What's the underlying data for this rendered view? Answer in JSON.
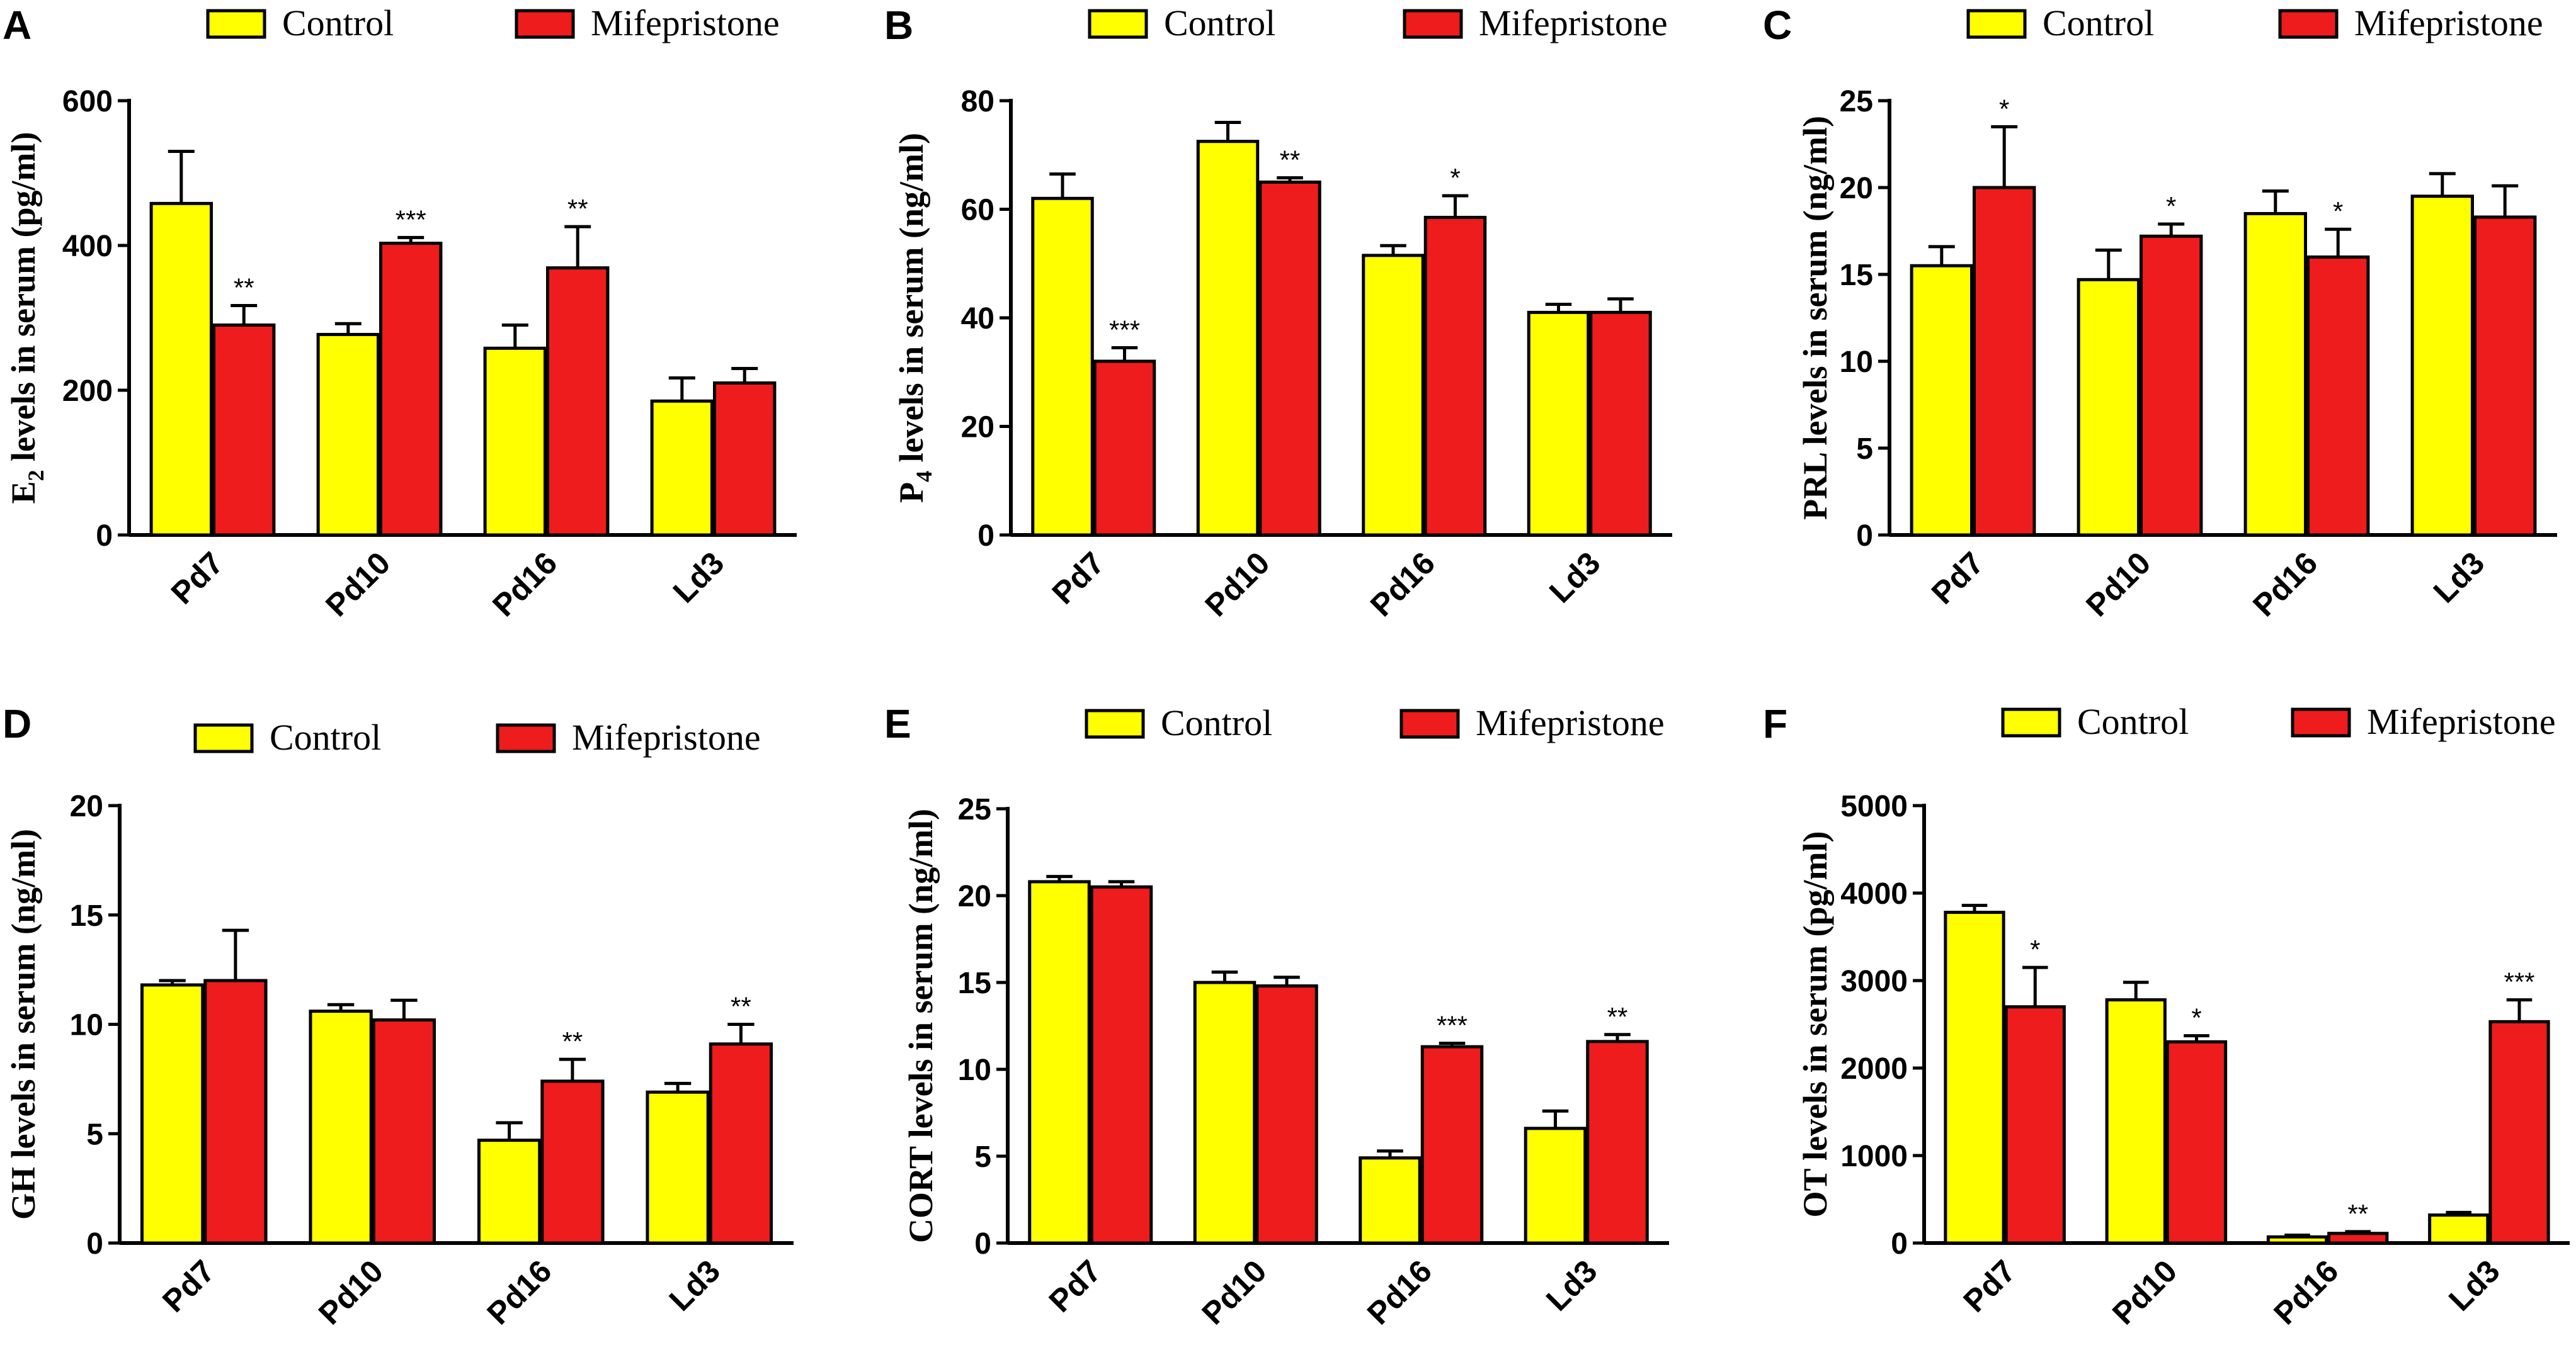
{
  "colors": {
    "control": "#ffff00",
    "treatment": "#ee1c1c"
  },
  "legend": {
    "control": "Control",
    "treatment": "Mifepristone"
  },
  "chart_data": [
    {
      "panel": "A",
      "type": "bar",
      "ylabel": {
        "main": "E",
        "sub": "2",
        "rest": " levels in serum (pg/ml)"
      },
      "ylim": [
        0,
        600
      ],
      "yticks": [
        0,
        200,
        400,
        600
      ],
      "categories": [
        "Pd7",
        "Pd10",
        "Pd16",
        "Ld3"
      ],
      "series": [
        {
          "name": "Control",
          "values": [
            458,
            277,
            258,
            185
          ],
          "errors": [
            72,
            15,
            32,
            32
          ]
        },
        {
          "name": "Mifepristone",
          "values": [
            290,
            403,
            369,
            210
          ],
          "errors": [
            27,
            8,
            57,
            20
          ],
          "significance": [
            "**",
            "***",
            "**",
            ""
          ]
        }
      ]
    },
    {
      "panel": "B",
      "type": "bar",
      "ylabel": {
        "main": "P",
        "sub": "4",
        "rest": " levels in serum (ng/ml)"
      },
      "ylim": [
        0,
        80
      ],
      "yticks": [
        0,
        20,
        40,
        60,
        80
      ],
      "categories": [
        "Pd7",
        "Pd10",
        "Pd16",
        "Ld3"
      ],
      "series": [
        {
          "name": "Control",
          "values": [
            62,
            72.5,
            51.5,
            41
          ],
          "errors": [
            4.5,
            3.5,
            1.8,
            1.5
          ]
        },
        {
          "name": "Mifepristone",
          "values": [
            32,
            65,
            58.5,
            41
          ],
          "errors": [
            2.5,
            0.8,
            4,
            2.5
          ],
          "significance": [
            "***",
            "**",
            "*",
            ""
          ]
        }
      ]
    },
    {
      "panel": "C",
      "type": "bar",
      "ylabel": {
        "main": "PRL levels in serum (ng/ml)",
        "sub": "",
        "rest": ""
      },
      "ylim": [
        0,
        25
      ],
      "yticks": [
        0,
        5,
        10,
        15,
        20,
        25
      ],
      "categories": [
        "Pd7",
        "Pd10",
        "Pd16",
        "Ld3"
      ],
      "series": [
        {
          "name": "Control",
          "values": [
            15.5,
            14.7,
            18.5,
            19.5
          ],
          "errors": [
            1.1,
            1.7,
            1.3,
            1.3
          ]
        },
        {
          "name": "Mifepristone",
          "values": [
            20,
            17.2,
            16,
            18.3
          ],
          "errors": [
            3.5,
            0.7,
            1.6,
            1.8
          ],
          "significance": [
            "*",
            "*",
            "*",
            ""
          ]
        }
      ]
    },
    {
      "panel": "D",
      "type": "bar",
      "ylabel": {
        "main": "GH levels in serum (ng/ml)",
        "sub": "",
        "rest": ""
      },
      "ylim": [
        0,
        20
      ],
      "yticks": [
        0,
        5,
        10,
        15,
        20
      ],
      "categories": [
        "Pd7",
        "Pd10",
        "Pd16",
        "Ld3"
      ],
      "series": [
        {
          "name": "Control",
          "values": [
            11.8,
            10.6,
            4.7,
            6.9
          ],
          "errors": [
            0.2,
            0.3,
            0.8,
            0.4
          ]
        },
        {
          "name": "Mifepristone",
          "values": [
            12,
            10.2,
            7.4,
            9.1
          ],
          "errors": [
            2.3,
            0.9,
            1.0,
            0.9
          ],
          "significance": [
            "",
            "",
            "**",
            "**"
          ]
        }
      ]
    },
    {
      "panel": "E",
      "type": "bar",
      "ylabel": {
        "main": "CORT levels in serum (ng/ml)",
        "sub": "",
        "rest": ""
      },
      "ylim": [
        0,
        25
      ],
      "yticks": [
        0,
        5,
        10,
        15,
        20,
        25
      ],
      "categories": [
        "Pd7",
        "Pd10",
        "Pd16",
        "Ld3"
      ],
      "series": [
        {
          "name": "Control",
          "values": [
            20.8,
            15,
            4.9,
            6.6
          ],
          "errors": [
            0.3,
            0.6,
            0.4,
            1.0
          ]
        },
        {
          "name": "Mifepristone",
          "values": [
            20.5,
            14.8,
            11.3,
            11.6
          ],
          "errors": [
            0.3,
            0.5,
            0.2,
            0.4
          ],
          "significance": [
            "",
            "",
            "***",
            "**"
          ]
        }
      ]
    },
    {
      "panel": "F",
      "type": "bar",
      "ylabel": {
        "main": "OT levels in serum (pg/ml)",
        "sub": "",
        "rest": ""
      },
      "ylim": [
        0,
        5000
      ],
      "yticks": [
        0,
        1000,
        2000,
        3000,
        4000,
        5000
      ],
      "categories": [
        "Pd7",
        "Pd10",
        "Pd16",
        "Ld3"
      ],
      "series": [
        {
          "name": "Control",
          "values": [
            3780,
            2780,
            70,
            320
          ],
          "errors": [
            80,
            200,
            20,
            30
          ]
        },
        {
          "name": "Mifepristone",
          "values": [
            2700,
            2300,
            110,
            2530
          ],
          "errors": [
            450,
            70,
            20,
            250
          ],
          "significance": [
            "*",
            "*",
            "**",
            "***"
          ]
        }
      ]
    }
  ]
}
